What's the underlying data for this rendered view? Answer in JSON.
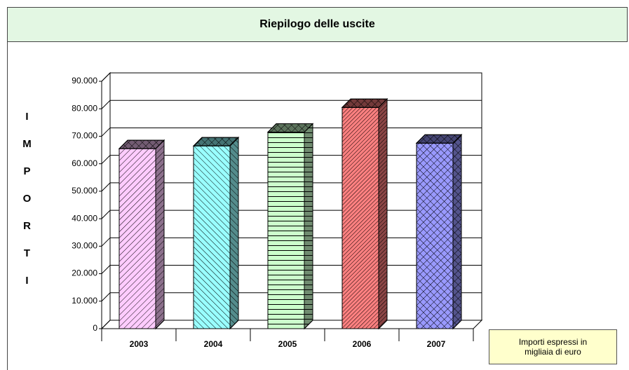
{
  "chart_data": {
    "type": "bar3d",
    "title": "Riepilogo delle uscite",
    "y_axis_label": "IMPORTI",
    "categories": [
      "2003",
      "2004",
      "2005",
      "2006",
      "2007"
    ],
    "values": [
      65500,
      66500,
      71500,
      80500,
      67500
    ],
    "colors": [
      "#ffccff",
      "#99ffff",
      "#ccffcc",
      "#ff8080",
      "#9999ff"
    ],
    "ylim": [
      0,
      90000
    ],
    "yticks": [
      0,
      {
        "value": 10000,
        "label": "10.000"
      },
      {
        "value": 20000,
        "label": "20.000"
      },
      {
        "value": 30000,
        "label": "30.000"
      },
      {
        "value": 40000,
        "label": "40.000"
      },
      {
        "value": 50000,
        "label": "50.000"
      },
      {
        "value": 60000,
        "label": "60.000"
      },
      {
        "value": 70000,
        "label": "70.000"
      },
      {
        "value": 80000,
        "label": "80.000"
      },
      {
        "value": 90000,
        "label": "90.000"
      }
    ],
    "grid": true,
    "note": "Importi espressi in migliaia di euro"
  }
}
